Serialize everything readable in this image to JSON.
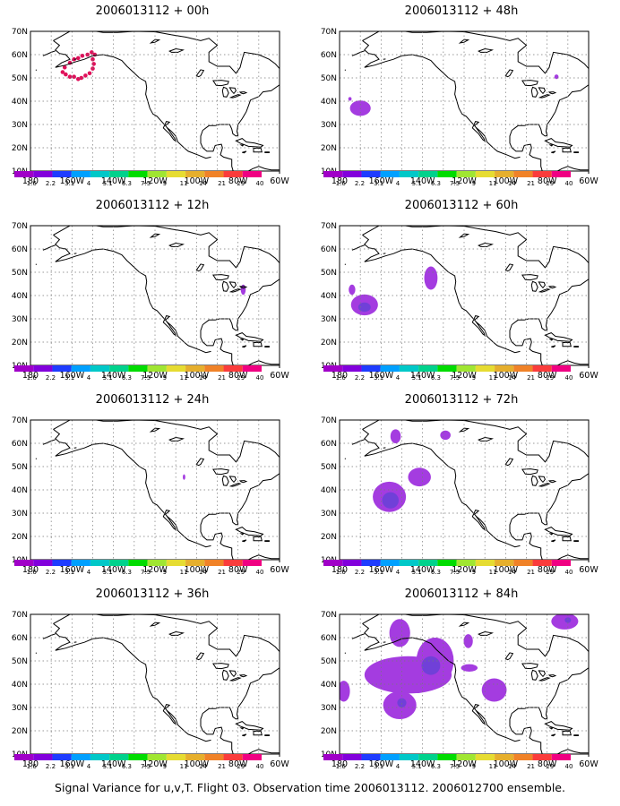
{
  "footer": "Signal Variance for u,v,T. Flight 03. Observation time 2006013112. 2006012700 ensemble.",
  "lat_labels": [
    "70N",
    "60N",
    "50N",
    "40N",
    "30N",
    "20N",
    "10N"
  ],
  "lon_labels": [
    "180",
    "160W",
    "140W",
    "120W",
    "100W",
    "80W",
    "60W"
  ],
  "colorbar": {
    "labels": [
      "1.6",
      "2.2",
      "3.1",
      "4",
      "5.1",
      "6.3",
      "7.5",
      "9",
      "11",
      "14",
      "21",
      "29",
      "40"
    ],
    "colors": [
      "#a000c8",
      "#8200dc",
      "#1e3cff",
      "#00a0ff",
      "#00c8c8",
      "#00d28c",
      "#00dc00",
      "#a0e632",
      "#e6dc32",
      "#e6af2d",
      "#f08228",
      "#fa3c3c",
      "#f00082"
    ]
  },
  "colors": {
    "signal_light": "#a43ce0",
    "signal_dark": "#7040d8",
    "initial_dots": "#e0105a"
  },
  "panels": [
    {
      "title": "2006013112 + 00h",
      "col": 0,
      "row": 0
    },
    {
      "title": "2006013112 + 48h",
      "col": 1,
      "row": 0
    },
    {
      "title": "2006013112 + 12h",
      "col": 0,
      "row": 1
    },
    {
      "title": "2006013112 + 60h",
      "col": 1,
      "row": 1
    },
    {
      "title": "2006013112 + 24h",
      "col": 0,
      "row": 2
    },
    {
      "title": "2006013112 + 72h",
      "col": 1,
      "row": 2
    },
    {
      "title": "2006013112 + 36h",
      "col": 0,
      "row": 3
    },
    {
      "title": "2006013112 + 84h",
      "col": 1,
      "row": 3
    }
  ]
}
